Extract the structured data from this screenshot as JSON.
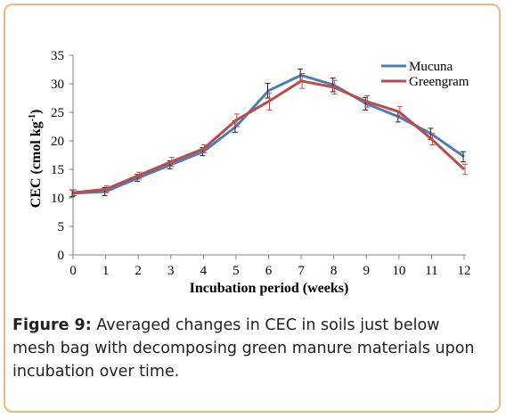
{
  "chart_data": {
    "type": "line",
    "xlabel": "Incubation period (weeks)",
    "ylabel": "CEC (cmol kg",
    "ylabel_sup": "-1",
    "ylabel_close": ")",
    "x": [
      0,
      1,
      2,
      3,
      4,
      5,
      6,
      7,
      8,
      9,
      10,
      11,
      12
    ],
    "ylim": [
      0,
      35
    ],
    "yticks": [
      0,
      5,
      10,
      15,
      20,
      25,
      30,
      35
    ],
    "legend_position": "top-right",
    "series": [
      {
        "name": "Mucuna",
        "color": "#4a7ebb",
        "values": [
          10.8,
          11.1,
          13.5,
          15.8,
          18.1,
          22.5,
          28.8,
          31.5,
          29.8,
          26.5,
          24.2,
          21.2,
          17.2
        ],
        "errors": [
          0.6,
          0.7,
          0.6,
          0.7,
          0.7,
          1.0,
          1.3,
          1.1,
          1.2,
          1.1,
          0.9,
          1.0,
          0.9
        ]
      },
      {
        "name": "Greengram",
        "color": "#be4b48",
        "values": [
          10.9,
          11.5,
          13.9,
          16.3,
          18.6,
          23.6,
          26.9,
          30.5,
          29.4,
          26.9,
          25.1,
          20.3,
          15.0
        ],
        "errors": [
          0.5,
          0.6,
          0.6,
          0.8,
          0.7,
          1.1,
          1.5,
          1.3,
          1.2,
          1.0,
          0.9,
          1.0,
          0.9
        ]
      }
    ]
  },
  "caption": {
    "label": "Figure 9:",
    "text": " Averaged changes in CEC in soils just below mesh bag with decomposing green manure materials upon incubation over time."
  }
}
